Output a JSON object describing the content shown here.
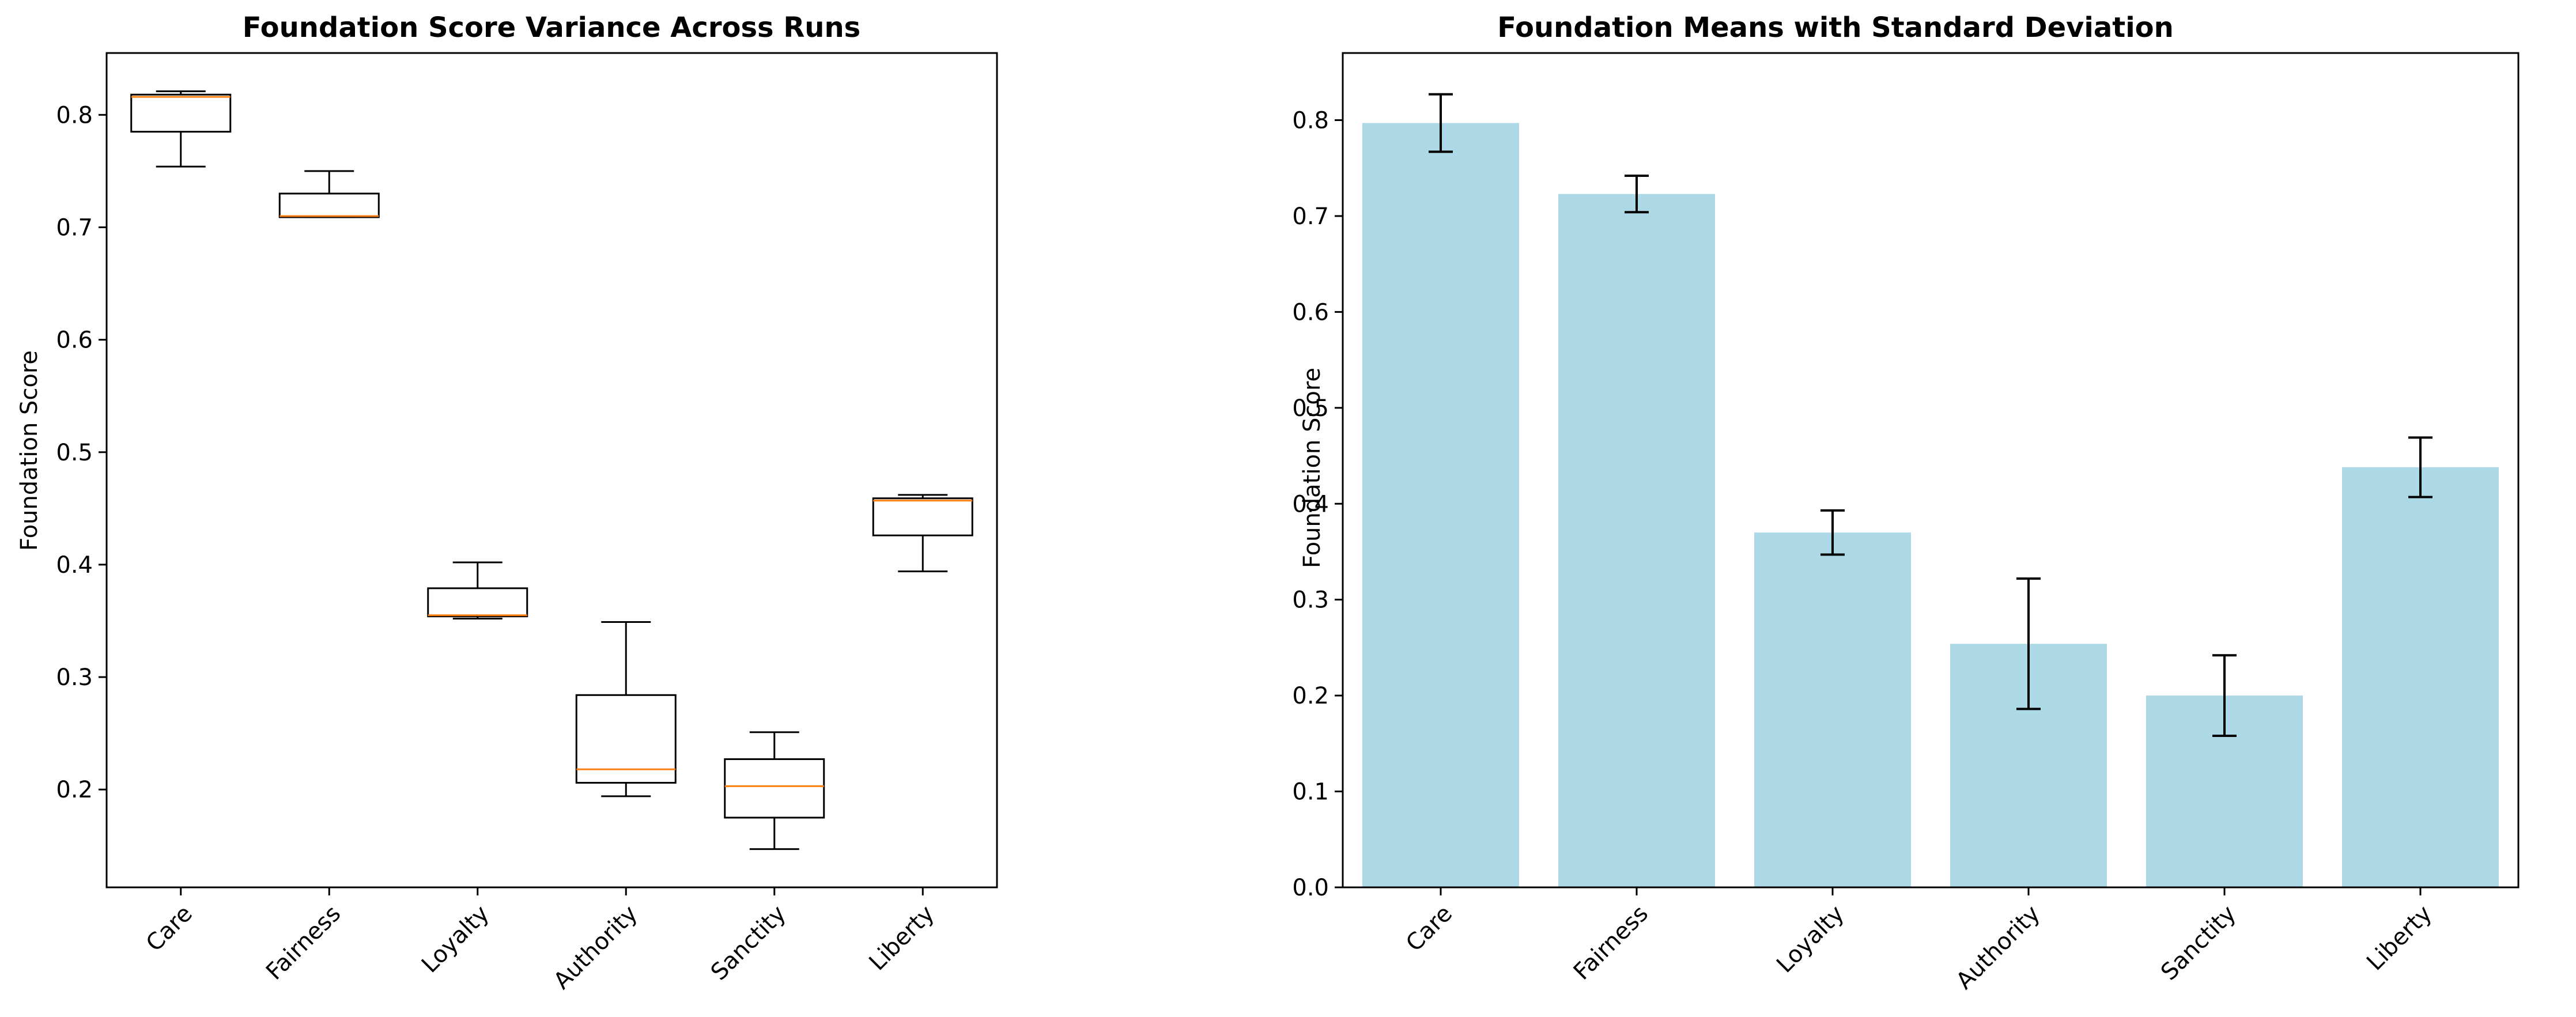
{
  "chart_data": [
    {
      "type": "box",
      "title": "Foundation Score Variance Across Runs",
      "xlabel": "",
      "ylabel": "Foundation Score",
      "categories": [
        "Care",
        "Fairness",
        "Loyalty",
        "Authority",
        "Sanctity",
        "Liberty"
      ],
      "boxes": [
        {
          "whisker_low": 0.754,
          "q1": 0.785,
          "median": 0.816,
          "q3": 0.818,
          "whisker_high": 0.821
        },
        {
          "whisker_low": 0.709,
          "q1": 0.709,
          "median": 0.71,
          "q3": 0.73,
          "whisker_high": 0.75
        },
        {
          "whisker_low": 0.352,
          "q1": 0.354,
          "median": 0.355,
          "q3": 0.379,
          "whisker_high": 0.402
        },
        {
          "whisker_low": 0.194,
          "q1": 0.206,
          "median": 0.218,
          "q3": 0.284,
          "whisker_high": 0.349
        },
        {
          "whisker_low": 0.147,
          "q1": 0.175,
          "median": 0.203,
          "q3": 0.227,
          "whisker_high": 0.251
        },
        {
          "whisker_low": 0.394,
          "q1": 0.426,
          "median": 0.457,
          "q3": 0.459,
          "whisker_high": 0.462
        }
      ],
      "yticks": [
        0.2,
        0.3,
        0.4,
        0.5,
        0.6,
        0.7,
        0.8
      ],
      "ylim": [
        0.113,
        0.855
      ],
      "colors": {
        "box": "#000000",
        "median": "#ff7f0e"
      },
      "grid": false
    },
    {
      "type": "bar",
      "title": "Foundation Means with Standard Deviation",
      "xlabel": "",
      "ylabel": "Foundation Score",
      "categories": [
        "Care",
        "Fairness",
        "Loyalty",
        "Authority",
        "Sanctity",
        "Liberty"
      ],
      "values": [
        0.797,
        0.723,
        0.37,
        0.254,
        0.2,
        0.438
      ],
      "errors": [
        0.03,
        0.019,
        0.023,
        0.068,
        0.042,
        0.031
      ],
      "yticks": [
        0.0,
        0.1,
        0.2,
        0.3,
        0.4,
        0.5,
        0.6,
        0.7,
        0.8
      ],
      "ylim": [
        0.0,
        0.87
      ],
      "colors": {
        "bar": "#add8e6",
        "error": "#000000"
      },
      "grid": false
    }
  ]
}
